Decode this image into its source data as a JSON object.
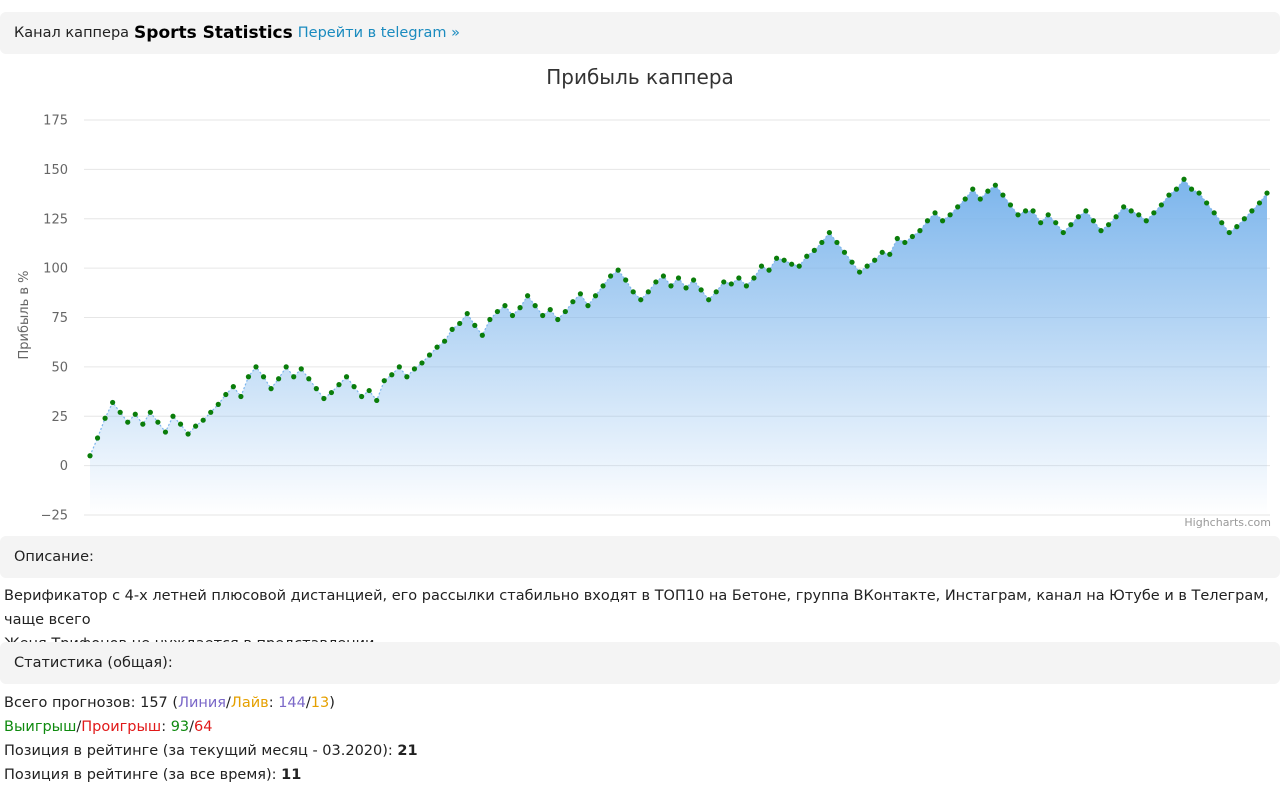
{
  "header": {
    "prefix": "Канал каппера",
    "channel_name": "Sports Statistics",
    "link_label": "Перейти в telegram »"
  },
  "chart_data": {
    "type": "area",
    "title": "Прибыль каппера",
    "ylabel": "Прибыль в %",
    "xlabel": "",
    "ylim": [
      -25,
      175
    ],
    "yticks": [
      "175",
      "150",
      "125",
      "100",
      "75",
      "50",
      "25",
      "0",
      "−25"
    ],
    "ytick_values": [
      175,
      150,
      125,
      100,
      75,
      50,
      25,
      0,
      -25
    ],
    "grid": true,
    "legend": "none",
    "credits": "Highcharts.com",
    "colors": {
      "area_top": "#7cb5ec",
      "line": "#7cb5ec",
      "marker": "#0a7d0a",
      "grid": "#e6e6e6"
    },
    "values": [
      5,
      14,
      24,
      32,
      27,
      22,
      26,
      21,
      27,
      22,
      17,
      25,
      21,
      16,
      20,
      23,
      27,
      31,
      36,
      40,
      35,
      45,
      50,
      45,
      39,
      44,
      50,
      45,
      49,
      44,
      39,
      34,
      37,
      41,
      45,
      40,
      35,
      38,
      33,
      43,
      46,
      50,
      45,
      49,
      52,
      56,
      60,
      63,
      69,
      72,
      77,
      71,
      66,
      74,
      78,
      81,
      76,
      80,
      86,
      81,
      76,
      79,
      74,
      78,
      83,
      87,
      81,
      86,
      91,
      96,
      99,
      94,
      88,
      84,
      88,
      93,
      96,
      91,
      95,
      90,
      94,
      89,
      84,
      88,
      93,
      92,
      95,
      91,
      95,
      101,
      99,
      105,
      104,
      102,
      101,
      106,
      109,
      113,
      118,
      113,
      108,
      103,
      98,
      101,
      104,
      108,
      107,
      115,
      113,
      116,
      119,
      124,
      128,
      124,
      127,
      131,
      135,
      140,
      135,
      139,
      142,
      137,
      132,
      127,
      129,
      129,
      123,
      127,
      123,
      118,
      122,
      126,
      129,
      124,
      119,
      122,
      126,
      131,
      129,
      127,
      124,
      128,
      132,
      137,
      140,
      145,
      140,
      138,
      133,
      128,
      123,
      118,
      121,
      125,
      129,
      133,
      138
    ]
  },
  "description": {
    "title": "Описание:",
    "line1": "Верификатор с 4-х летней плюсовой дистанцией, его рассылки стабильно входят в ТОП10 на Бетоне, группа ВКонтакте, Инстаграм, канал на Ютубе и в Телеграм, чаще всего",
    "line2": "Женя Трифонов не нуждается в представлении"
  },
  "stats": {
    "title": "Статистика (общая):",
    "total_label": "Всего прогнозов: ",
    "total_value": "157",
    "open_paren": " (",
    "line_label": "Линия",
    "slash": "/",
    "live_label": "Лайв",
    "colon": ": ",
    "line_value": "144",
    "live_value": "13",
    "close_paren": ")",
    "win_label": "Выигрыш",
    "loss_label": "Проигрыш",
    "win_value": "93",
    "loss_value": "64",
    "rank_month_label": "Позиция в рейтинге (за текущий месяц - 03.2020): ",
    "rank_month_value": "21",
    "rank_all_label": "Позиция в рейтинге (за все время): ",
    "rank_all_value": "11"
  }
}
